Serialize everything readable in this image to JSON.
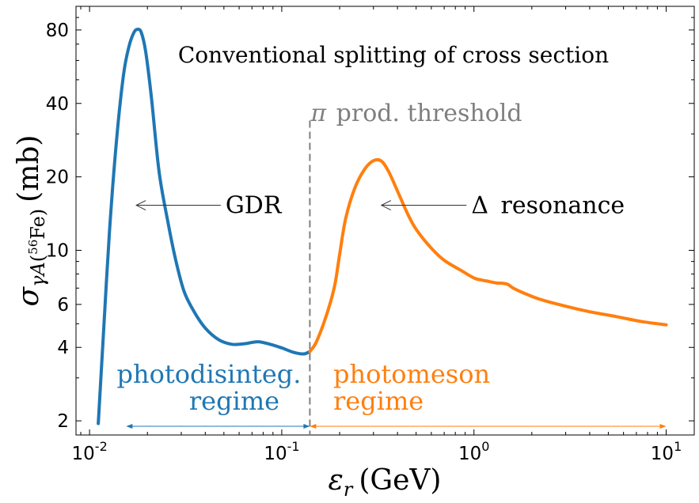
{
  "chart_data": {
    "type": "line",
    "title": "Conventional splitting of cross section",
    "xlabel": {
      "symbol": "ε",
      "sub": "r",
      "unit": "(GeV)"
    },
    "ylabel": {
      "symbol": "σ",
      "sub": "γA",
      "isotope_mass": "56",
      "isotope_element": "Fe",
      "unit": "(mb)"
    },
    "xscale": "log",
    "yscale": "log",
    "xlim": [
      0.0085,
      14
    ],
    "ylim": [
      1.75,
      100
    ],
    "x_ticks": [
      {
        "value": 0.01,
        "base": "10",
        "exp": "-2"
      },
      {
        "value": 0.1,
        "base": "10",
        "exp": "-1"
      },
      {
        "value": 1,
        "base": "10",
        "exp": "0"
      },
      {
        "value": 10,
        "base": "10",
        "exp": "1"
      }
    ],
    "y_ticks": [
      {
        "value": 2,
        "label": "2"
      },
      {
        "value": 4,
        "label": "4"
      },
      {
        "value": 6,
        "label": "6"
      },
      {
        "value": 10,
        "label": "10"
      },
      {
        "value": 20,
        "label": "20"
      },
      {
        "value": 40,
        "label": "40"
      },
      {
        "value": 80,
        "label": "80"
      }
    ],
    "series": [
      {
        "color": "#1f77b4",
        "x": [
          0.0111,
          0.0118,
          0.0127,
          0.0138,
          0.015,
          0.016,
          0.017,
          0.0178,
          0.0186,
          0.0196,
          0.021,
          0.023,
          0.0255,
          0.028,
          0.031,
          0.035,
          0.04,
          0.047,
          0.055,
          0.064,
          0.075,
          0.087,
          0.1,
          0.115,
          0.13,
          0.14
        ],
        "y": [
          1.95,
          4.5,
          12,
          28,
          52,
          68,
          78,
          80.5,
          78,
          65,
          42,
          21,
          13.2,
          9.2,
          6.8,
          5.6,
          4.8,
          4.3,
          4.12,
          4.14,
          4.22,
          4.12,
          3.98,
          3.82,
          3.76,
          3.85
        ]
      },
      {
        "color": "#ff7f0e",
        "x": [
          0.14,
          0.15,
          0.165,
          0.18,
          0.19,
          0.2,
          0.215,
          0.24,
          0.27,
          0.3,
          0.33,
          0.36,
          0.4,
          0.45,
          0.5,
          0.6,
          0.7,
          0.85,
          1.0,
          1.1,
          1.2,
          1.3,
          1.4,
          1.5,
          1.6,
          1.8,
          2.2,
          3.0,
          4.0,
          5.5,
          7.5,
          10.0
        ],
        "y": [
          3.85,
          4.15,
          5.0,
          6.2,
          7.4,
          9.6,
          13.5,
          18.0,
          21.5,
          23.3,
          23.2,
          21.0,
          17.5,
          14.2,
          12.2,
          10.2,
          9.1,
          8.3,
          7.7,
          7.55,
          7.45,
          7.35,
          7.33,
          7.25,
          7.0,
          6.7,
          6.3,
          5.9,
          5.6,
          5.35,
          5.1,
          4.95
        ]
      }
    ],
    "threshold_line": {
      "x": 0.14,
      "y_top": 34,
      "color": "#7f7f7f",
      "style": "dashed"
    },
    "annotations": {
      "threshold": {
        "symbol": "π",
        "text": "prod. threshold",
        "color": "#7f7f7f",
        "x": 0.14,
        "y": 36
      },
      "gdr": {
        "text": "GDR",
        "color": "#000000",
        "x": 0.05,
        "y": 15.3,
        "arrow_to_x": 0.0175
      },
      "delta": {
        "symbol": "Δ",
        "text": "resonance",
        "color": "#000000",
        "x": 0.95,
        "y": 15.3,
        "arrow_to_x": 0.33
      },
      "photodis": {
        "lines": [
          "photodisinteg.",
          "regime"
        ],
        "color": "#1f77b4",
        "x_from": 0.0155,
        "x_to": 0.14,
        "arrow_y": 1.9
      },
      "photomeson": {
        "lines": [
          "photomeson",
          "regime"
        ],
        "color": "#ff7f0e",
        "x_from": 0.14,
        "x_to": 10,
        "arrow_y": 1.9
      }
    }
  }
}
